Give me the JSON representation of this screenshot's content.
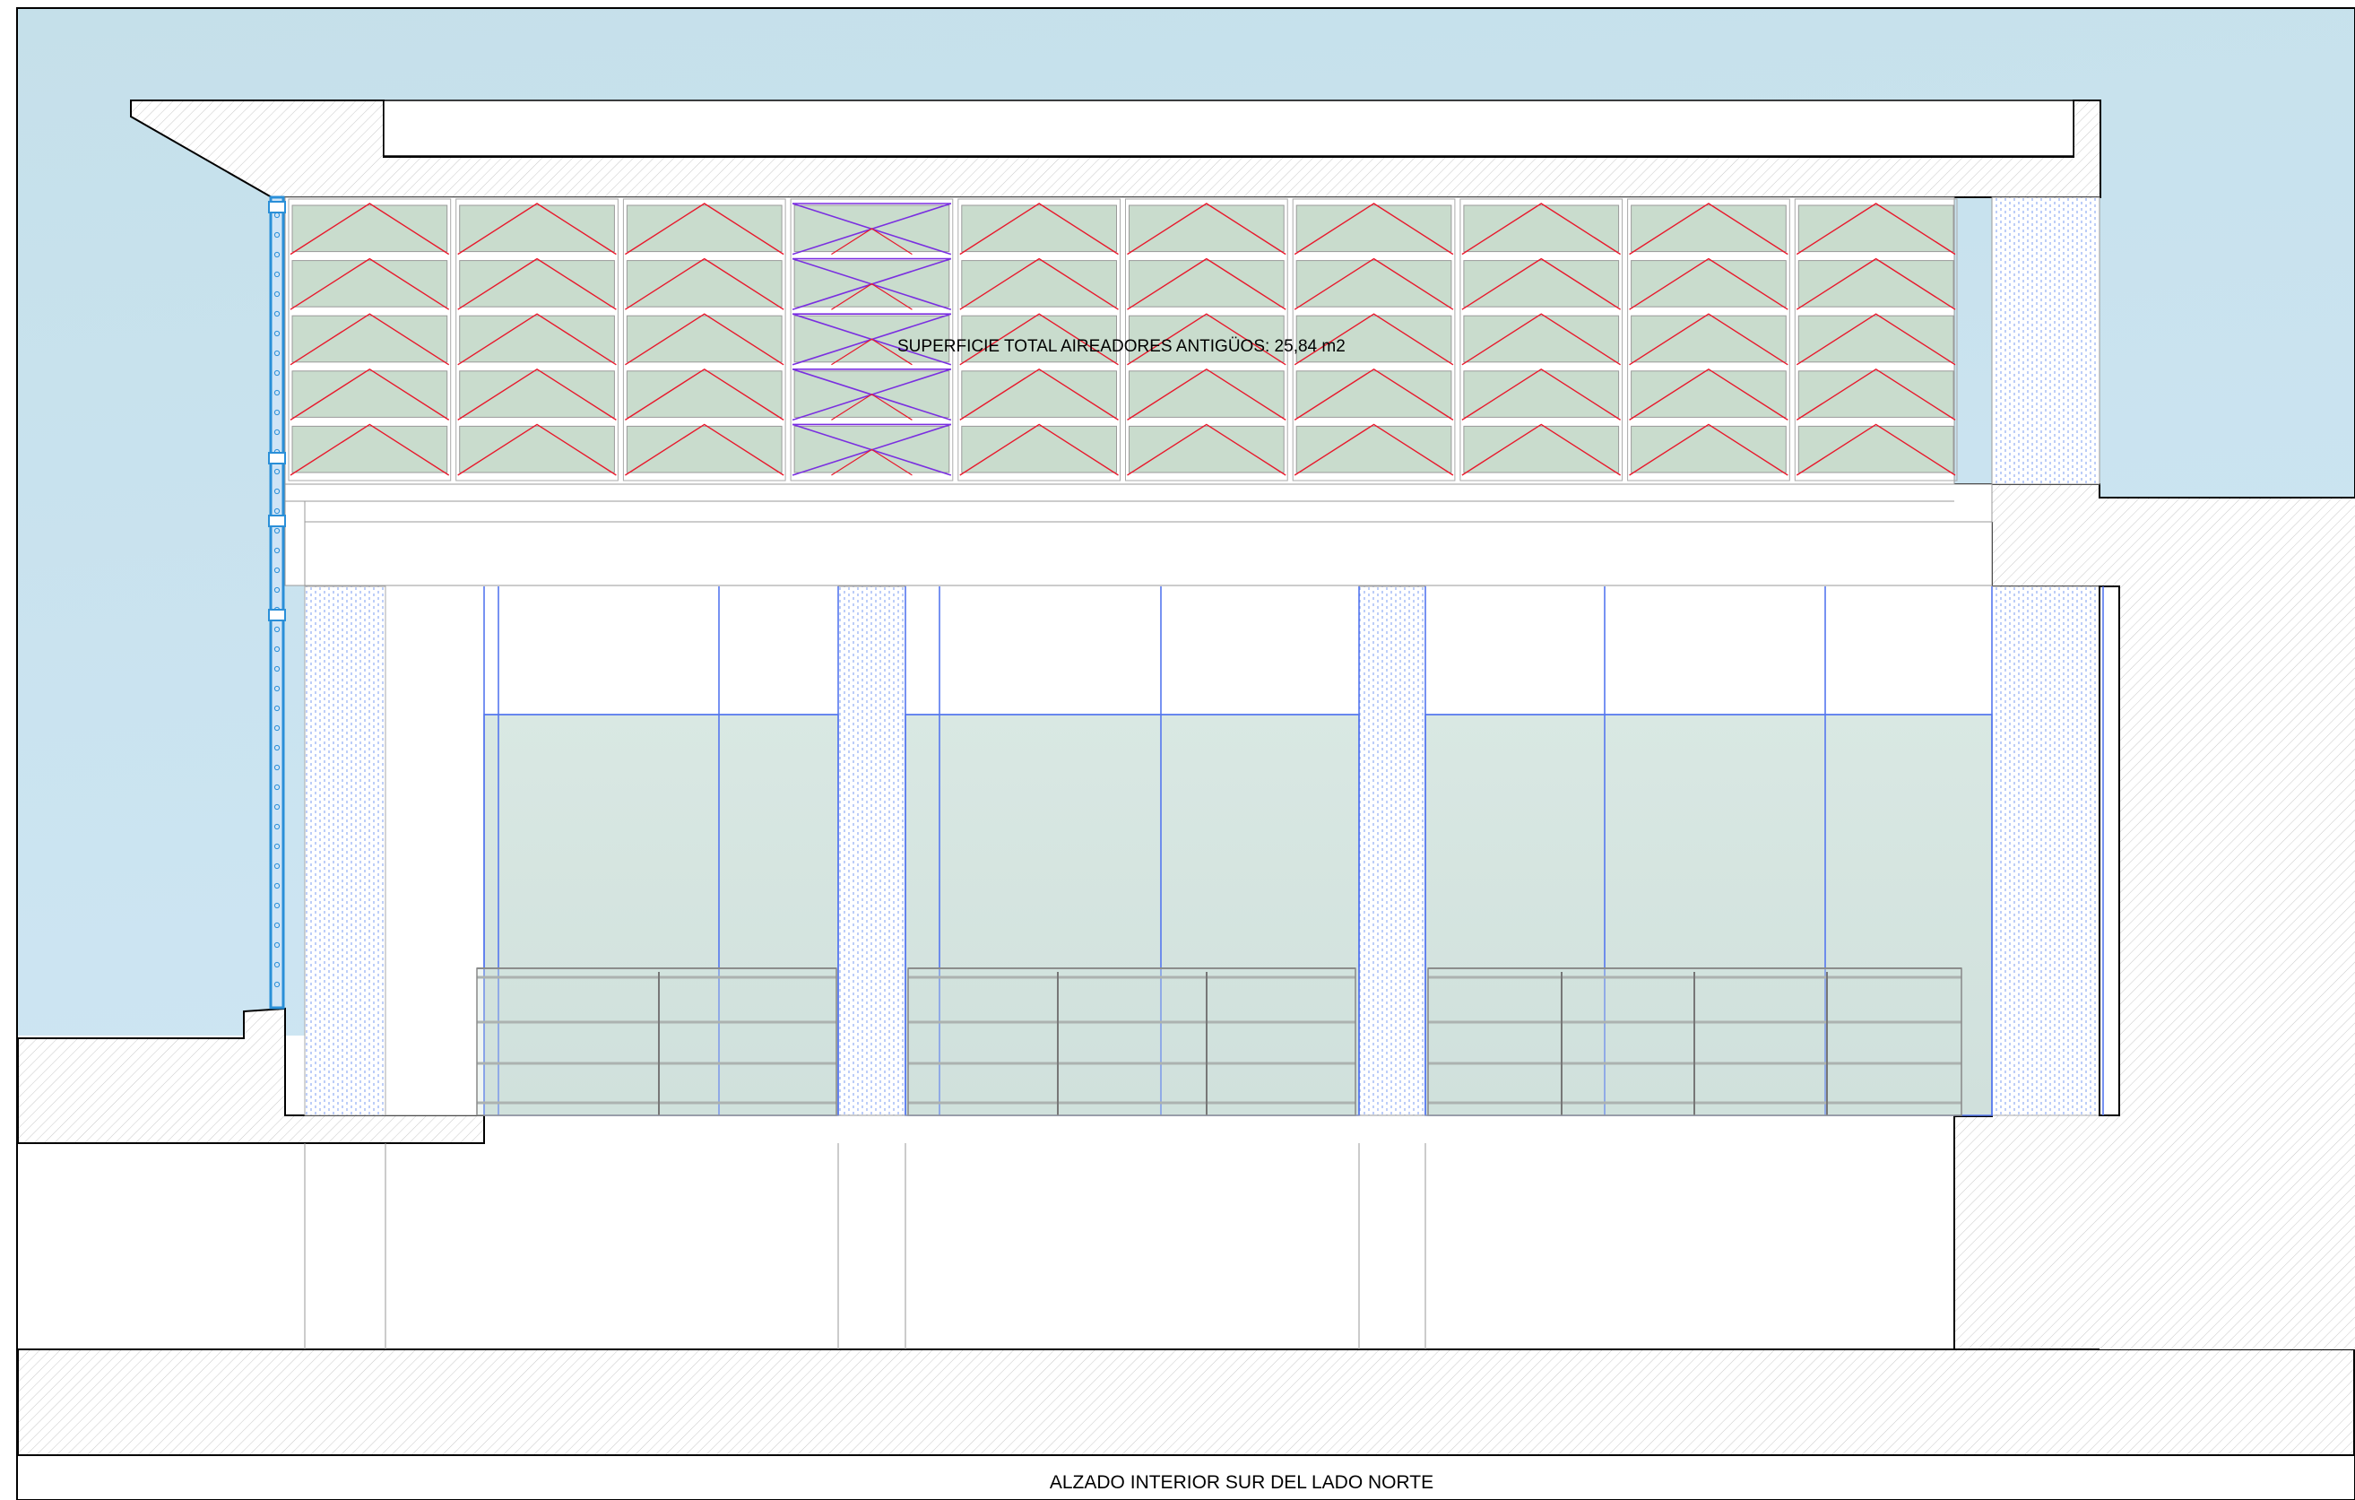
{
  "drawing": {
    "area_annotation": "SUPERFICIE TOTAL AIREADORES ANTIGÜOS: 25,84 m2",
    "title": "ALZADO INTERIOR SUR DEL LADO NORTE"
  },
  "legend_colors": {
    "sky_top": "#c6dfea",
    "sky_bottom": "#cde4f2",
    "glass": "#d4e4dc",
    "aerator_panel": "#c9dccd",
    "aerator_red": "#e8192c",
    "aerator_violet": "#7a2fe0",
    "window_mullion": "#5577ee",
    "downpipe": "#2a8fd8"
  }
}
